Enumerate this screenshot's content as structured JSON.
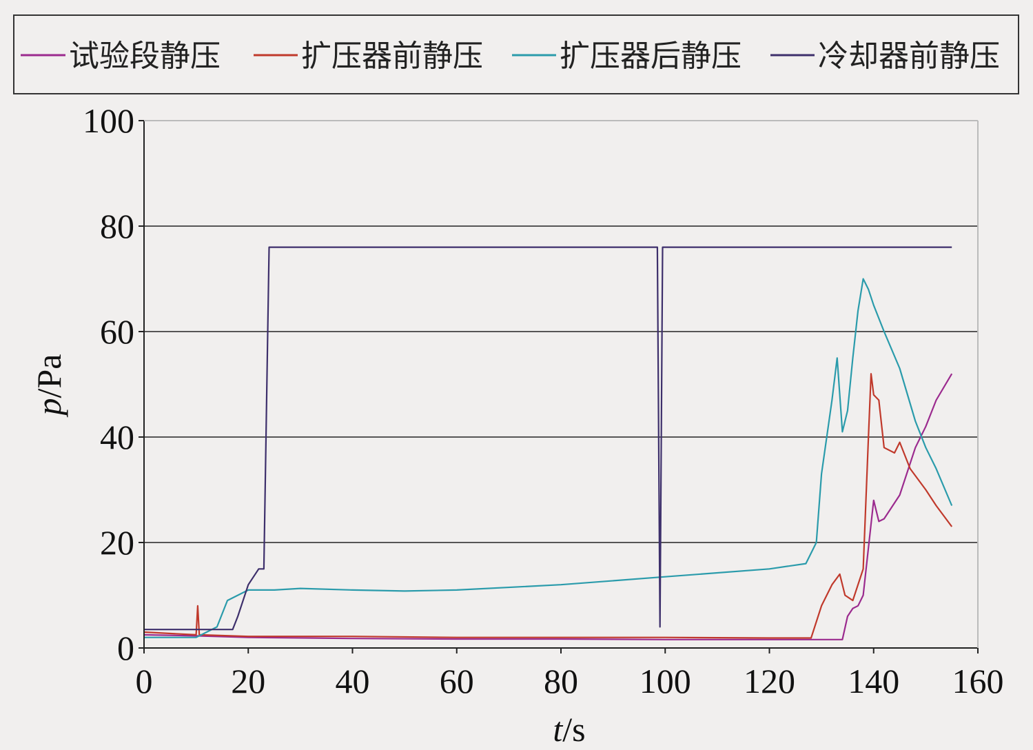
{
  "chart_data": {
    "type": "line",
    "xlabel_var": "t",
    "xlabel_unit": "/s",
    "ylabel_var": "p",
    "ylabel_unit": "/Pa",
    "xlim": [
      0,
      160
    ],
    "ylim": [
      0,
      100
    ],
    "x_ticks": [
      "0",
      "20",
      "40",
      "60",
      "80",
      "100",
      "120",
      "140",
      "160"
    ],
    "y_ticks": [
      "0",
      "20",
      "40",
      "60",
      "80",
      "100"
    ],
    "grid": "horizontal",
    "legend_position": "top",
    "series": [
      {
        "name": "试验段静压",
        "color": "#9b2a8e",
        "points": [
          [
            0,
            2.5
          ],
          [
            10,
            2.3
          ],
          [
            20,
            2.0
          ],
          [
            40,
            1.8
          ],
          [
            60,
            1.7
          ],
          [
            80,
            1.7
          ],
          [
            100,
            1.6
          ],
          [
            120,
            1.6
          ],
          [
            130,
            1.6
          ],
          [
            134,
            1.6
          ],
          [
            135,
            6
          ],
          [
            136,
            7.5
          ],
          [
            137,
            8
          ],
          [
            138,
            10
          ],
          [
            139,
            19
          ],
          [
            140,
            28
          ],
          [
            141,
            24
          ],
          [
            142,
            24.5
          ],
          [
            145,
            29
          ],
          [
            148,
            38
          ],
          [
            150,
            42
          ],
          [
            152,
            47
          ],
          [
            155,
            52
          ]
        ]
      },
      {
        "name": "扩压器前静压",
        "color": "#c0392b",
        "points": [
          [
            0,
            3.0
          ],
          [
            10,
            2.5
          ],
          [
            10.3,
            8
          ],
          [
            10.6,
            2.5
          ],
          [
            20,
            2.2
          ],
          [
            40,
            2.2
          ],
          [
            60,
            2.0
          ],
          [
            80,
            2.0
          ],
          [
            100,
            2.0
          ],
          [
            120,
            1.9
          ],
          [
            128,
            1.9
          ],
          [
            130,
            8
          ],
          [
            132,
            12
          ],
          [
            133.5,
            14
          ],
          [
            134.5,
            10
          ],
          [
            136,
            9
          ],
          [
            138,
            15
          ],
          [
            139,
            40
          ],
          [
            139.5,
            52
          ],
          [
            140,
            48
          ],
          [
            141,
            47
          ],
          [
            142,
            38
          ],
          [
            144,
            37
          ],
          [
            145,
            39
          ],
          [
            147,
            34
          ],
          [
            150,
            30
          ],
          [
            152,
            27
          ],
          [
            155,
            23
          ]
        ]
      },
      {
        "name": "扩压器后静压",
        "color": "#2a9bab",
        "points": [
          [
            0,
            2.0
          ],
          [
            10,
            2.0
          ],
          [
            14,
            4
          ],
          [
            16,
            9
          ],
          [
            20,
            11
          ],
          [
            25,
            11
          ],
          [
            30,
            11.3
          ],
          [
            40,
            11
          ],
          [
            50,
            10.8
          ],
          [
            60,
            11
          ],
          [
            80,
            12
          ],
          [
            100,
            13.5
          ],
          [
            120,
            15
          ],
          [
            127,
            16
          ],
          [
            129,
            20
          ],
          [
            130,
            33
          ],
          [
            132,
            47
          ],
          [
            133,
            55
          ],
          [
            134,
            41
          ],
          [
            135,
            45
          ],
          [
            136,
            55
          ],
          [
            137,
            64
          ],
          [
            138,
            70
          ],
          [
            139,
            68
          ],
          [
            140,
            65
          ],
          [
            142,
            60
          ],
          [
            145,
            53
          ],
          [
            148,
            43
          ],
          [
            150,
            38
          ],
          [
            152,
            34
          ],
          [
            155,
            27
          ]
        ]
      },
      {
        "name": "冷却器前静压",
        "color": "#3d2f6b",
        "points": [
          [
            0,
            3.5
          ],
          [
            10,
            3.5
          ],
          [
            17,
            3.5
          ],
          [
            18,
            6
          ],
          [
            20,
            12
          ],
          [
            22,
            15
          ],
          [
            23,
            15
          ],
          [
            24,
            76
          ],
          [
            30,
            76
          ],
          [
            40,
            76
          ],
          [
            50,
            76
          ],
          [
            60,
            76
          ],
          [
            70,
            76
          ],
          [
            80,
            76
          ],
          [
            90,
            76
          ],
          [
            98.5,
            76
          ],
          [
            99,
            4
          ],
          [
            99.5,
            76
          ],
          [
            110,
            76
          ],
          [
            120,
            76
          ],
          [
            130,
            76
          ],
          [
            140,
            76
          ],
          [
            150,
            76
          ],
          [
            155,
            76
          ]
        ]
      }
    ]
  }
}
